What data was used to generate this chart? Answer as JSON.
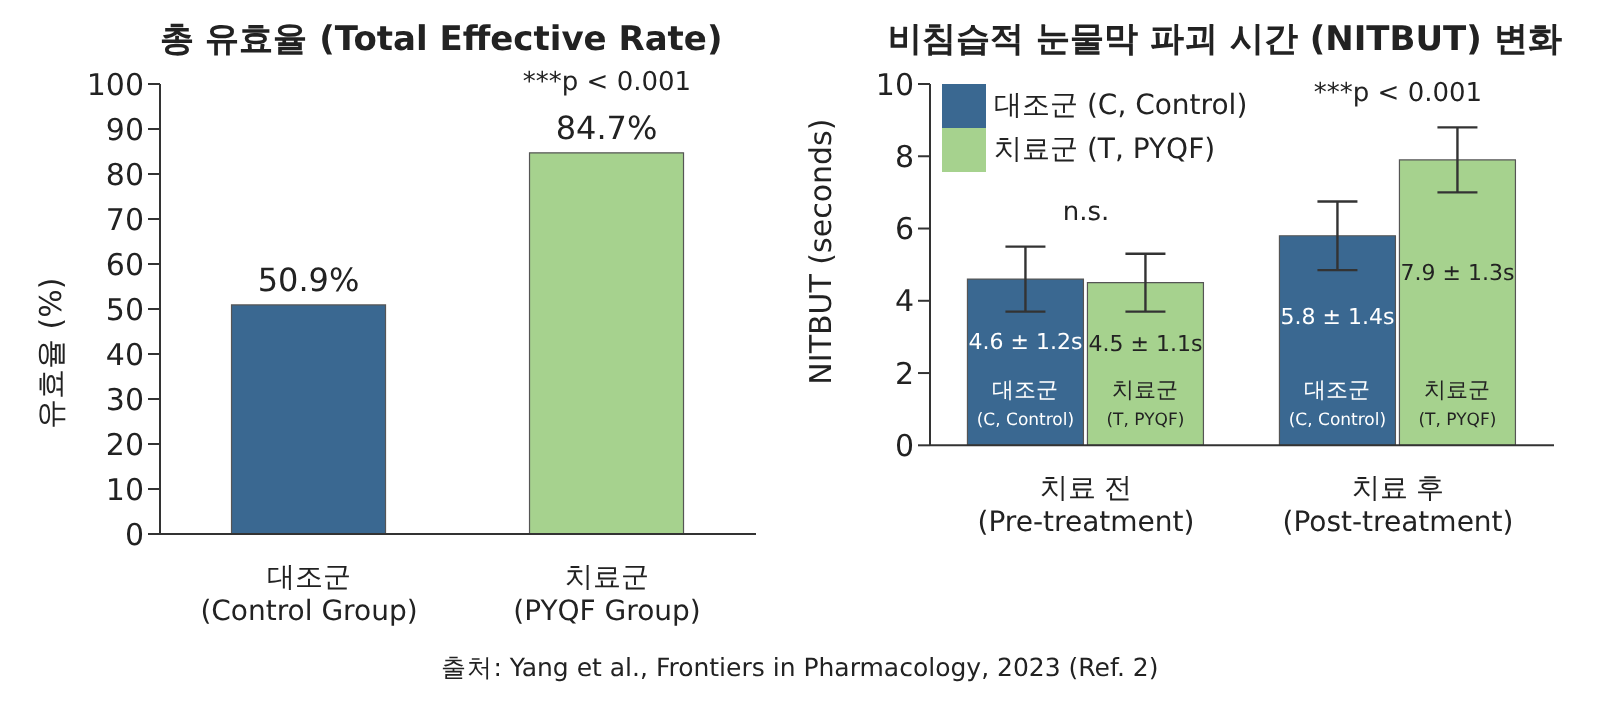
{
  "chart_data": [
    {
      "type": "bar",
      "title": "총 유효율 (Total Effective Rate)",
      "ylabel": "유효율 (%)",
      "categories": [
        "대조군\n(Control Group)",
        "치료군\n(PYQF Group)"
      ],
      "values": [
        50.9,
        84.7
      ],
      "colors": [
        "#3a6891",
        "#a6d28e"
      ],
      "value_labels": [
        "50.9%",
        "84.7%"
      ],
      "ylim": [
        0,
        100
      ],
      "yticks": [
        0,
        10,
        20,
        30,
        40,
        50,
        60,
        70,
        80,
        90,
        100
      ],
      "grid": false,
      "legend": false,
      "annotations": [
        "***p < 0.001"
      ]
    },
    {
      "type": "bar",
      "title": "비침습적 눈물막 파괴 시간 (NITBUT) 변화",
      "ylabel": "NITBUT (seconds)",
      "categories": [
        "치료 전\n(Pre-treatment)",
        "치료 후\n(Post-treatment)"
      ],
      "series": [
        {
          "name": "대조군 (C, Control)",
          "color": "#3a6891",
          "values": [
            4.6,
            5.8
          ],
          "errors": [
            0.9,
            0.95
          ],
          "value_labels": [
            "4.6 ± 1.2s",
            "5.8 ± 1.4s"
          ]
        },
        {
          "name": "치료군 (T, PYQF)",
          "color": "#a6d28e",
          "values": [
            4.5,
            7.9
          ],
          "errors": [
            0.8,
            0.9
          ],
          "value_labels": [
            "4.5 ± 1.1s",
            "7.9 ± 1.3s"
          ]
        }
      ],
      "ylim": [
        0,
        10
      ],
      "yticks": [
        0,
        2,
        4,
        6,
        8,
        10
      ],
      "grid": false,
      "legend": "top left",
      "annotations": [
        "n.s.",
        "***p < 0.001",
        "출처: Yang et al., Frontiers in Pharmacology, 2023 (Ref. 2)"
      ]
    }
  ]
}
